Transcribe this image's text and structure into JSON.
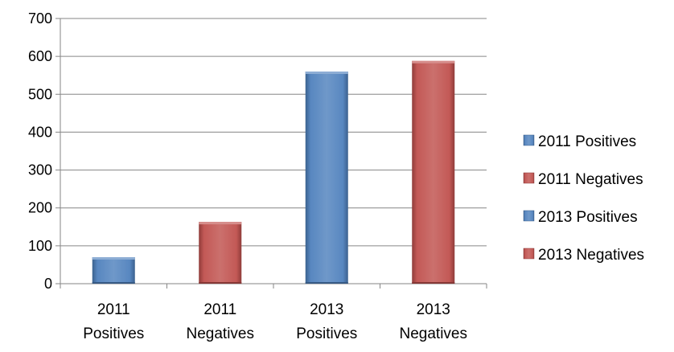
{
  "chart_data": {
    "type": "bar",
    "title": "",
    "xlabel": "",
    "ylabel": "",
    "categories": [
      [
        "2011",
        "Positives"
      ],
      [
        "2011",
        "Negatives"
      ],
      [
        "2013",
        "Positives"
      ],
      [
        "2013",
        "Negatives"
      ]
    ],
    "values": [
      70,
      163,
      560,
      588
    ],
    "bar_colors": [
      "#4f81bd",
      "#c0504d",
      "#4f81bd",
      "#c0504d"
    ],
    "ylim": [
      0,
      700
    ],
    "yticks": [
      0,
      100,
      200,
      300,
      400,
      500,
      600,
      700
    ],
    "grid": true,
    "legend_position": "right",
    "legend": [
      {
        "label": "2011 Positives",
        "color": "#4f81bd"
      },
      {
        "label": "2011 Negatives",
        "color": "#c0504d"
      },
      {
        "label": "2013 Positives",
        "color": "#4f81bd"
      },
      {
        "label": "2013 Negatives",
        "color": "#c0504d"
      }
    ]
  }
}
